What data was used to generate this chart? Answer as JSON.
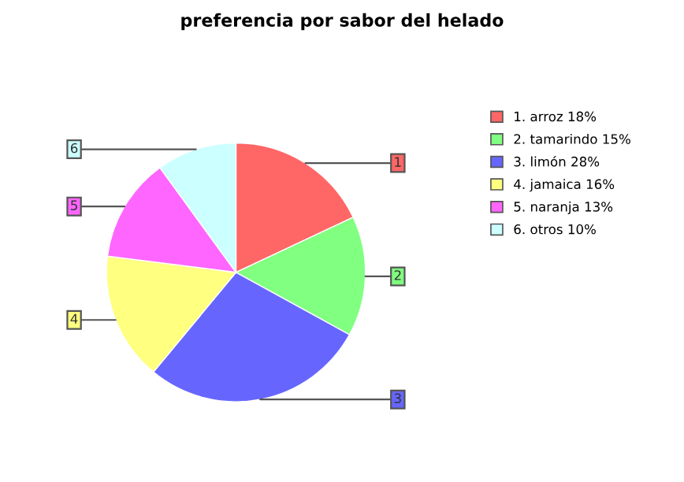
{
  "chart_data": {
    "type": "pie",
    "title": "preferencia por sabor del helado",
    "categories": [
      "1. arroz 18%",
      "2. tamarindo 15%",
      "3. limón 28%",
      "4. jamaica 16%",
      "5. naranja 13%",
      "6. otros 10%"
    ],
    "values": [
      18,
      15,
      28,
      16,
      13,
      10
    ],
    "colors": [
      "#ff6666",
      "#80ff80",
      "#6666ff",
      "#ffff80",
      "#ff66ff",
      "#ccffff"
    ],
    "annotations": [
      "1",
      "2",
      "3",
      "4",
      "5",
      "6"
    ],
    "legend": "right"
  }
}
